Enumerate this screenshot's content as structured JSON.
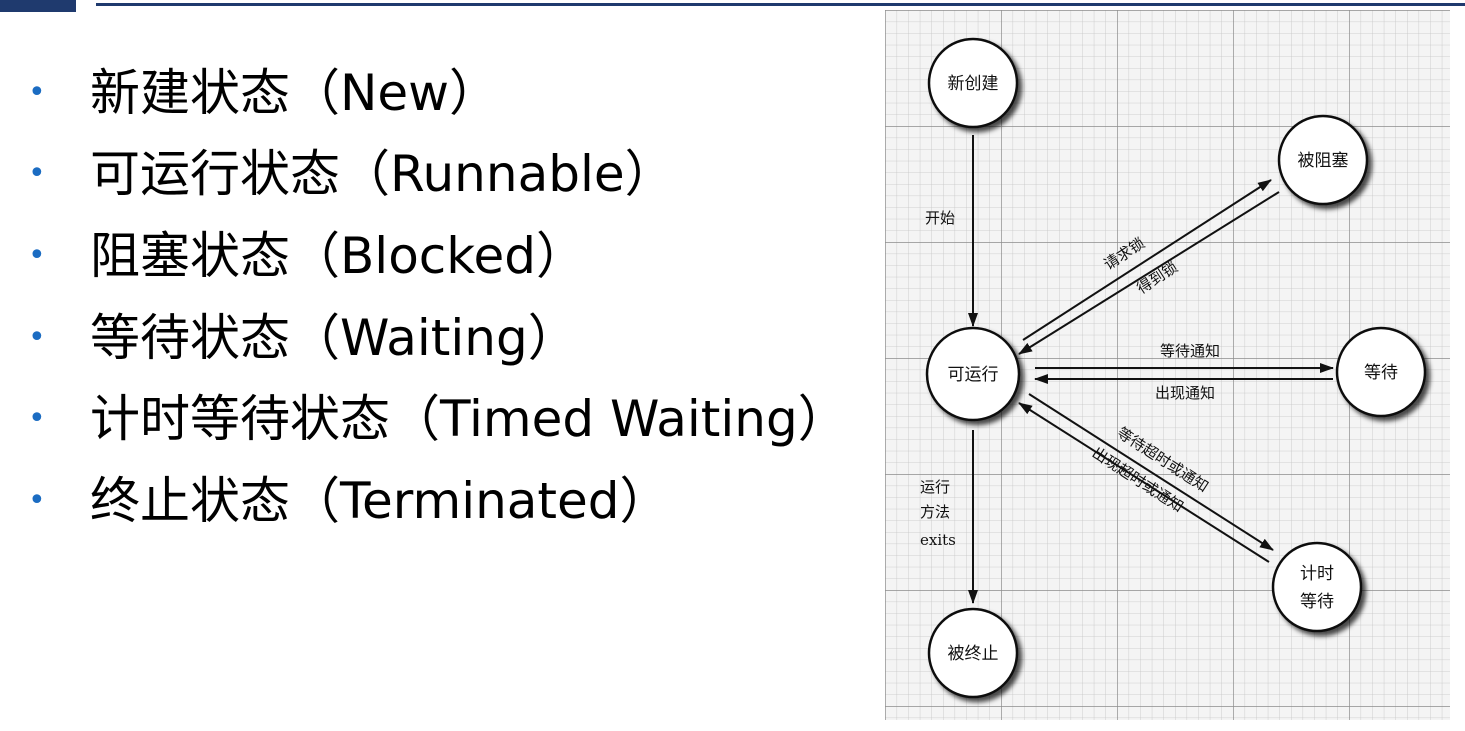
{
  "slide": {
    "bullets": [
      "新建状态（New）",
      "可运行状态（Runnable）",
      "阻塞状态（Blocked）",
      "等待状态（Waiting）",
      "计时等待状态（Timed Waiting）",
      "终止状态（Terminated）"
    ]
  },
  "diagram": {
    "nodes": {
      "new": "新创建",
      "blocked": "被阻塞",
      "runnable": "可运行",
      "waiting": "等待",
      "timed_waiting_line1": "计时",
      "timed_waiting_line2": "等待",
      "terminated": "被终止"
    },
    "edges": {
      "start": "开始",
      "request_lock": "请求锁",
      "acquire_lock": "得到锁",
      "wait_notify": "等待通知",
      "notified": "出现通知",
      "wait_timeout_or_notify": "等待超时或通知",
      "timeout_or_notified": "出现超时或通知",
      "run_method_line1": "运行",
      "run_method_line2": "方法",
      "run_method_line3": "exits"
    }
  },
  "colors": {
    "header_bar": "#1f3a6e",
    "bullet": "#1b6cc2",
    "grid": "#a9a9a9"
  }
}
